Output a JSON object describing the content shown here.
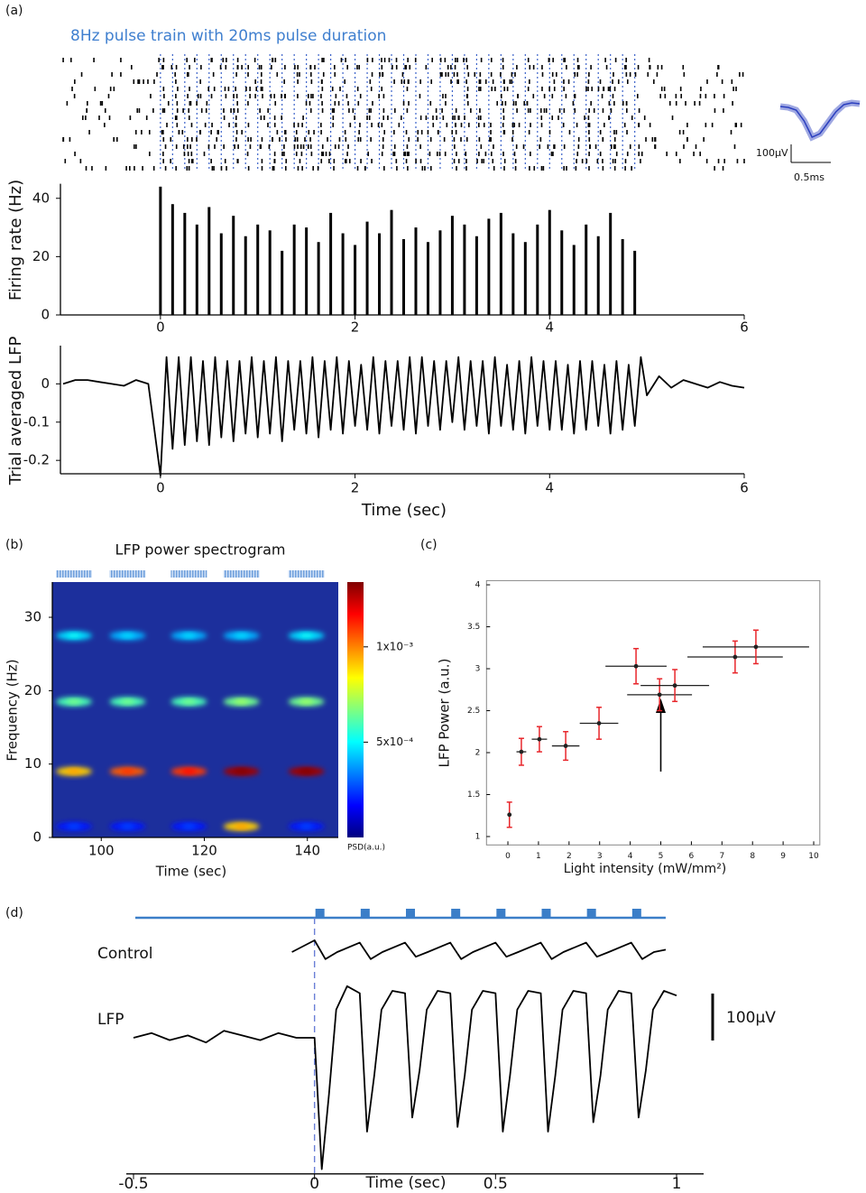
{
  "chart_data": [
    {
      "type": "stem",
      "panel_label": "(a)",
      "title": "8Hz pulse train with 20ms pulse duration",
      "ylabel": "Firing rate (Hz)",
      "color": "#000000",
      "stim_color": "#3b62c9",
      "x": [
        0,
        0.125,
        0.25,
        0.375,
        0.5,
        0.625,
        0.75,
        0.875,
        1,
        1.125,
        1.25,
        1.375,
        1.5,
        1.625,
        1.75,
        1.875,
        2,
        2.125,
        2.25,
        2.375,
        2.5,
        2.625,
        2.75,
        2.875,
        3,
        3.125,
        3.25,
        3.375,
        3.5,
        3.625,
        3.75,
        3.875,
        4,
        4.125,
        4.25,
        4.375,
        4.5,
        4.625,
        4.75,
        4.875
      ],
      "values": [
        44,
        38,
        35,
        31,
        37,
        28,
        34,
        27,
        31,
        29,
        22,
        31,
        30,
        25,
        35,
        28,
        24,
        32,
        28,
        36,
        26,
        30,
        25,
        29,
        34,
        31,
        27,
        33,
        35,
        28,
        25,
        31,
        36,
        29,
        24,
        31,
        27,
        35,
        26,
        22
      ],
      "xlim": [
        -1,
        6
      ],
      "xticks": [
        0,
        2,
        4,
        6
      ],
      "ylim": [
        0,
        45
      ],
      "yticks": [
        0,
        20,
        40
      ]
    },
    {
      "type": "line",
      "ylabel": "Trial averaged LFP",
      "xlabel": "Time (sec)",
      "color": "#000000",
      "x": [
        -1,
        -0.875,
        -0.75,
        -0.625,
        -0.5,
        -0.375,
        -0.25,
        -0.125,
        0,
        0.0625,
        0.125,
        0.1875,
        0.25,
        0.3125,
        0.375,
        0.4375,
        0.5,
        0.5625,
        0.625,
        0.6875,
        0.75,
        0.8125,
        0.875,
        0.9375,
        1,
        1.0625,
        1.125,
        1.1875,
        1.25,
        1.3125,
        1.375,
        1.4375,
        1.5,
        1.5625,
        1.625,
        1.6875,
        1.75,
        1.8125,
        1.875,
        1.9375,
        2,
        2.0625,
        2.125,
        2.1875,
        2.25,
        2.3125,
        2.375,
        2.4375,
        2.5,
        2.5625,
        2.625,
        2.6875,
        2.75,
        2.8125,
        2.875,
        2.9375,
        3,
        3.0625,
        3.125,
        3.1875,
        3.25,
        3.3125,
        3.375,
        3.4375,
        3.5,
        3.5625,
        3.625,
        3.6875,
        3.75,
        3.8125,
        3.875,
        3.9375,
        4,
        4.0625,
        4.125,
        4.1875,
        4.25,
        4.3125,
        4.375,
        4.4375,
        4.5,
        4.5625,
        4.625,
        4.6875,
        4.75,
        4.8125,
        4.875,
        4.9375,
        5,
        5.125,
        5.25,
        5.375,
        5.5,
        5.625,
        5.75,
        5.875,
        6
      ],
      "values": [
        0,
        0.01,
        0.01,
        0.005,
        0,
        -0.005,
        0.01,
        0,
        -0.24,
        0.07,
        -0.17,
        0.07,
        -0.16,
        0.07,
        -0.15,
        0.06,
        -0.16,
        0.07,
        -0.14,
        0.06,
        -0.15,
        0.06,
        -0.13,
        0.07,
        -0.14,
        0.06,
        -0.13,
        0.07,
        -0.15,
        0.06,
        -0.12,
        0.06,
        -0.13,
        0.07,
        -0.14,
        0.06,
        -0.12,
        0.07,
        -0.13,
        0.06,
        -0.11,
        0.05,
        -0.12,
        0.07,
        -0.13,
        0.06,
        -0.11,
        0.06,
        -0.12,
        0.07,
        -0.13,
        0.07,
        -0.11,
        0.06,
        -0.12,
        0.06,
        -0.1,
        0.07,
        -0.12,
        0.06,
        -0.11,
        0.06,
        -0.13,
        0.07,
        -0.11,
        0.05,
        -0.12,
        0.06,
        -0.13,
        0.07,
        -0.11,
        0.06,
        -0.12,
        0.06,
        -0.12,
        0.05,
        -0.13,
        0.06,
        -0.12,
        0.06,
        -0.11,
        0.05,
        -0.13,
        0.06,
        -0.12,
        0.05,
        -0.11,
        0.07,
        -0.03,
        0.02,
        -0.01,
        0.01,
        0,
        -0.01,
        0.005,
        -0.005,
        -0.01
      ],
      "xlim": [
        -1,
        6
      ],
      "xticks": [
        0,
        2,
        4,
        6
      ],
      "ylim": [
        -0.235,
        0.1
      ],
      "yticks": [
        0,
        -0.1,
        -0.2
      ]
    },
    {
      "type": "line",
      "color": "#2b3fbf",
      "x": [
        0,
        0.1,
        0.2,
        0.3,
        0.4,
        0.5,
        0.6,
        0.7,
        0.8,
        0.9,
        1
      ],
      "values": [
        0,
        -5,
        -20,
        -80,
        -170,
        -150,
        -90,
        -30,
        10,
        20,
        15
      ],
      "xlim": [
        0,
        1
      ],
      "ylim": [
        -200,
        50
      ],
      "scale_y": {
        "value": 100,
        "label": "100µV"
      },
      "scale_x": {
        "value": 0.5,
        "label": "0.5ms"
      }
    },
    {
      "type": "heatmap",
      "panel_label": "(b)",
      "title": "LFP power spectrogram",
      "xlabel": "Time (sec)",
      "ylabel": "Frequency (Hz)",
      "x": [
        94.7,
        105.1,
        117,
        127.2,
        139.8
      ],
      "y": [
        1.5,
        9,
        18.5,
        27.5
      ],
      "values": [
        [
          0.0002,
          0.0002,
          0.0002,
          0.0009,
          0.0002
        ],
        [
          0.0009,
          0.00105,
          0.0011,
          0.0013,
          0.0013
        ],
        [
          0.0006,
          0.0006,
          0.0006,
          0.00065,
          0.00065
        ],
        [
          0.00045,
          0.0004,
          0.0004,
          0.0004,
          0.00045
        ]
      ],
      "xlim": [
        90.5,
        146
      ],
      "xticks": [
        100,
        120,
        140
      ],
      "ylim": [
        0,
        34.8
      ],
      "yticks": [
        0,
        10,
        20,
        30
      ],
      "clim": [
        0,
        0.00134
      ],
      "cticks": [
        {
          "value": 0.001,
          "label": "1x10⁻³"
        },
        {
          "value": 0.0005,
          "label": "5x10⁻⁴"
        }
      ],
      "clabel": "PSD(a.u.)"
    },
    {
      "type": "errorbar",
      "panel_label": "(c)",
      "xlabel": "Light intensity (mW/mm²)",
      "ylabel": "LFP Power (a.u.)",
      "color": "#222222",
      "error_color": "#e8262b",
      "x": [
        0.05,
        0.44,
        1.03,
        1.89,
        2.98,
        4.19,
        4.96,
        5.46,
        7.43,
        8.11
      ],
      "values": [
        1.26,
        2.01,
        2.16,
        2.08,
        2.35,
        3.03,
        2.69,
        2.8,
        3.14,
        3.26
      ],
      "x_err": [
        0,
        0.16,
        0.25,
        0.45,
        0.63,
        1.0,
        1.06,
        1.12,
        1.56,
        1.74
      ],
      "y_err": [
        0.15,
        0.16,
        0.15,
        0.17,
        0.19,
        0.21,
        0.19,
        0.19,
        0.19,
        0.2
      ],
      "xlim": [
        -0.7,
        10.2
      ],
      "xticks": [
        0,
        1,
        2,
        3,
        4,
        5,
        6,
        7,
        8,
        9,
        10
      ],
      "ylim": [
        0.9,
        4.05
      ],
      "yticks": [
        1,
        1.5,
        2,
        2.5,
        3,
        3.5,
        4
      ]
    },
    {
      "type": "line",
      "panel_label": "(d)",
      "xlabel": "Time (sec)",
      "pulse_color": "#3b7ec8",
      "pulses": [
        0,
        0.125,
        0.25,
        0.375,
        0.5,
        0.625,
        0.75,
        0.875
      ],
      "series": [
        {
          "name": "Control",
          "color": "#000000",
          "x": [
            -0.0625,
            0,
            0.03,
            0.0625,
            0.125,
            0.155,
            0.1875,
            0.25,
            0.28,
            0.3125,
            0.375,
            0.405,
            0.4375,
            0.5,
            0.53,
            0.5625,
            0.625,
            0.655,
            0.6875,
            0.75,
            0.78,
            0.8125,
            0.875,
            0.905,
            0.9375,
            0.97
          ],
          "values": [
            0,
            25,
            -15,
            0,
            20,
            -15,
            0,
            20,
            -10,
            0,
            20,
            -15,
            0,
            20,
            -10,
            0,
            20,
            -15,
            0,
            20,
            -10,
            0,
            20,
            -15,
            0,
            5
          ]
        },
        {
          "name": "LFP",
          "color": "#000000",
          "x": [
            -0.5,
            -0.45,
            -0.4,
            -0.35,
            -0.3,
            -0.25,
            -0.2,
            -0.15,
            -0.1,
            -0.05,
            0,
            0.02,
            0.04,
            0.06,
            0.09,
            0.125,
            0.145,
            0.165,
            0.185,
            0.215,
            0.25,
            0.27,
            0.29,
            0.31,
            0.34,
            0.375,
            0.395,
            0.415,
            0.435,
            0.465,
            0.5,
            0.52,
            0.54,
            0.56,
            0.59,
            0.625,
            0.645,
            0.665,
            0.685,
            0.715,
            0.75,
            0.77,
            0.79,
            0.81,
            0.84,
            0.875,
            0.895,
            0.915,
            0.935,
            0.965,
            1
          ],
          "values": [
            0,
            10,
            -5,
            5,
            -10,
            15,
            5,
            -5,
            10,
            0,
            0,
            -280,
            -120,
            60,
            110,
            95,
            -200,
            -80,
            60,
            100,
            95,
            -170,
            -70,
            60,
            100,
            95,
            -190,
            -80,
            60,
            100,
            95,
            -200,
            -80,
            60,
            100,
            95,
            -200,
            -80,
            60,
            100,
            95,
            -180,
            -80,
            60,
            100,
            95,
            -170,
            -70,
            60,
            100,
            90
          ]
        }
      ],
      "xlim": [
        -0.5,
        1
      ],
      "xticks": [
        -0.5,
        0,
        0.5,
        1
      ],
      "ylim": [
        -290,
        200
      ],
      "scale_bar": {
        "value": 100,
        "label": "100µV"
      }
    }
  ]
}
